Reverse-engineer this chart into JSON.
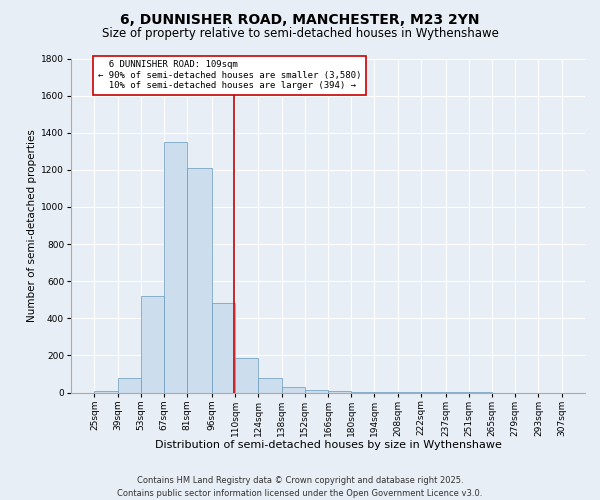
{
  "title": "6, DUNNISHER ROAD, MANCHESTER, M23 2YN",
  "subtitle": "Size of property relative to semi-detached houses in Wythenshawe",
  "xlabel": "Distribution of semi-detached houses by size in Wythenshawe",
  "ylabel": "Number of semi-detached properties",
  "bin_edges": [
    25,
    39,
    53,
    67,
    81,
    96,
    110,
    124,
    138,
    152,
    166,
    180,
    194,
    208,
    222,
    237,
    251,
    265,
    279,
    293,
    307
  ],
  "bin_labels": [
    "25sqm",
    "39sqm",
    "53sqm",
    "67sqm",
    "81sqm",
    "96sqm",
    "110sqm",
    "124sqm",
    "138sqm",
    "152sqm",
    "166sqm",
    "180sqm",
    "194sqm",
    "208sqm",
    "222sqm",
    "237sqm",
    "251sqm",
    "265sqm",
    "279sqm",
    "293sqm",
    "307sqm"
  ],
  "counts": [
    10,
    80,
    520,
    1350,
    1210,
    480,
    185,
    80,
    30,
    15,
    10,
    5,
    2,
    2,
    2,
    2,
    1,
    0,
    0,
    0
  ],
  "property_size": 109,
  "property_label": "6 DUNNISHER ROAD: 109sqm",
  "smaller_pct": "90%",
  "smaller_count": 3580,
  "larger_pct": "10%",
  "larger_count": 394,
  "bar_color": "#ccdded",
  "bar_edge_color": "#6699bb",
  "line_color": "#cc0000",
  "annotation_box_color": "#ffffff",
  "annotation_box_edge": "#cc0000",
  "background_color": "#e8eef5",
  "plot_bg_color": "#e8eef5",
  "grid_color": "#ffffff",
  "ylim": [
    0,
    1800
  ],
  "yticks": [
    0,
    200,
    400,
    600,
    800,
    1000,
    1200,
    1400,
    1600,
    1800
  ],
  "footer": "Contains HM Land Registry data © Crown copyright and database right 2025.\nContains public sector information licensed under the Open Government Licence v3.0.",
  "title_fontsize": 10,
  "subtitle_fontsize": 8.5,
  "xlabel_fontsize": 8,
  "ylabel_fontsize": 7.5,
  "tick_fontsize": 6.5,
  "annotation_fontsize": 6.5,
  "footer_fontsize": 6
}
